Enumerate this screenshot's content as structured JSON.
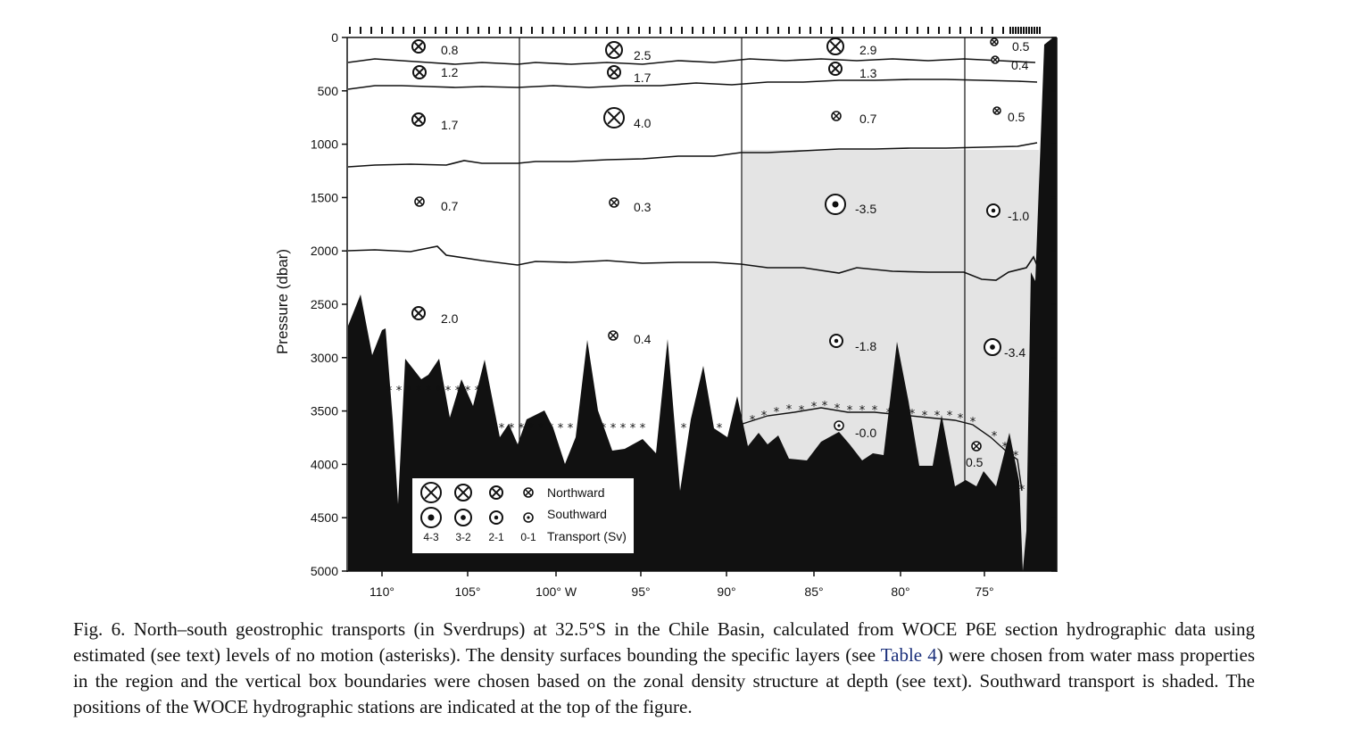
{
  "figure": {
    "y_axis_title": "Pressure (dbar)",
    "y_ticks": [
      "0",
      "500",
      "1000",
      "1500",
      "2000",
      "2500",
      "3000",
      "3500",
      "4000",
      "4500",
      "5000"
    ],
    "x_ticks": [
      "110°",
      "105°",
      "100° W",
      "95°",
      "90°",
      "85°",
      "80°",
      "75°"
    ],
    "transports": [
      {
        "value": "0.8",
        "symbol": "north"
      },
      {
        "value": "1.2",
        "symbol": "north"
      },
      {
        "value": "1.7",
        "symbol": "north"
      },
      {
        "value": "0.7",
        "symbol": "north"
      },
      {
        "value": "2.0",
        "symbol": "north"
      },
      {
        "value": "2.5",
        "symbol": "north"
      },
      {
        "value": "1.7",
        "symbol": "north"
      },
      {
        "value": "4.0",
        "symbol": "north"
      },
      {
        "value": "0.3",
        "symbol": "north"
      },
      {
        "value": "0.4",
        "symbol": "north"
      },
      {
        "value": "2.9",
        "symbol": "north"
      },
      {
        "value": "1.3",
        "symbol": "north"
      },
      {
        "value": "0.7",
        "symbol": "north"
      },
      {
        "value": "-3.5",
        "symbol": "south"
      },
      {
        "value": "-1.8",
        "symbol": "south"
      },
      {
        "value": "-0.0",
        "symbol": "south"
      },
      {
        "value": "0.5",
        "symbol": "north"
      },
      {
        "value": "0.4",
        "symbol": "north"
      },
      {
        "value": "0.5",
        "symbol": "north"
      },
      {
        "value": "-1.0",
        "symbol": "south"
      },
      {
        "value": "-3.4",
        "symbol": "south"
      },
      {
        "value": "0.5",
        "symbol": "north"
      }
    ],
    "legend": {
      "northward": "Northward",
      "southward": "Southward",
      "transport": "Transport (Sv)",
      "classes": [
        "4-3",
        "3-2",
        "2-1",
        "0-1"
      ]
    },
    "colors": {
      "shade": "#e4e4e4",
      "topography": "#111111"
    }
  },
  "caption": {
    "text_before_link": "Fig. 6. North–south geostrophic transports (in Sverdrups) at 32.5°S in the Chile Basin, calculated from WOCE P6E section hydrographic data using estimated (see text) levels of no motion (asterisks). The density surfaces bounding the specific layers (see ",
    "link": "Table 4",
    "text_after_link": ") were chosen from water mass properties in the region and the vertical box boundaries were chosen based on the zonal density structure at depth (see text). Southward transport is shaded. The positions of the WOCE hydrographic stations are indicated at the top of the figure."
  }
}
